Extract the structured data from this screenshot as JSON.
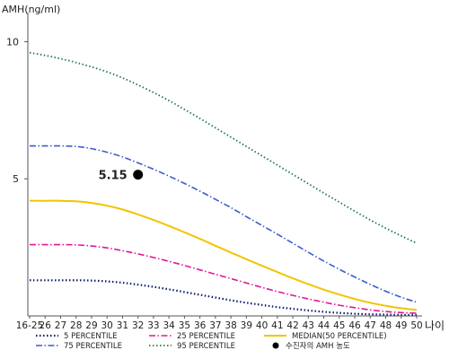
{
  "chart_data": {
    "type": "line",
    "ylabel": "AMH(ng/ml)",
    "xlabel": "나이",
    "yticks": [
      5,
      10
    ],
    "ylim": [
      0,
      10.8
    ],
    "categories": [
      "16-25",
      "26",
      "27",
      "28",
      "29",
      "30",
      "31",
      "32",
      "33",
      "34",
      "35",
      "36",
      "37",
      "38",
      "39",
      "40",
      "41",
      "42",
      "43",
      "44",
      "45",
      "46",
      "47",
      "48",
      "49",
      "50"
    ],
    "series": [
      {
        "name": "5 PERCENTILE",
        "color": "#0a1a6e",
        "dash": "1.5,2.5",
        "width": 2.2,
        "values": [
          1.3,
          1.3,
          1.3,
          1.3,
          1.29,
          1.26,
          1.21,
          1.14,
          1.06,
          0.97,
          0.87,
          0.77,
          0.67,
          0.57,
          0.48,
          0.4,
          0.32,
          0.26,
          0.2,
          0.15,
          0.11,
          0.08,
          0.06,
          0.05,
          0.04,
          0.04
        ]
      },
      {
        "name": "75 PERCENTILE",
        "color": "#3a5ec8",
        "dash": "7,2.5,1.5,2.5",
        "width": 1.6,
        "values": [
          6.2,
          6.2,
          6.2,
          6.18,
          6.1,
          5.97,
          5.8,
          5.58,
          5.35,
          5.1,
          4.83,
          4.55,
          4.25,
          3.95,
          3.62,
          3.3,
          2.98,
          2.65,
          2.32,
          2.0,
          1.7,
          1.42,
          1.15,
          0.9,
          0.68,
          0.5
        ]
      },
      {
        "name": "25 PERCENTILE",
        "color": "#e0189a",
        "dash": "7,2.5,1.5,2.5",
        "width": 1.6,
        "values": [
          2.6,
          2.6,
          2.6,
          2.59,
          2.55,
          2.48,
          2.38,
          2.26,
          2.13,
          1.99,
          1.84,
          1.68,
          1.52,
          1.36,
          1.2,
          1.04,
          0.89,
          0.75,
          0.62,
          0.5,
          0.39,
          0.3,
          0.22,
          0.16,
          0.12,
          0.1
        ]
      },
      {
        "name": "95 PERCENTILE",
        "color": "#1f7a43",
        "dash": "1.5,2.5",
        "width": 1.8,
        "values": [
          9.6,
          9.5,
          9.38,
          9.24,
          9.08,
          8.9,
          8.68,
          8.42,
          8.15,
          7.85,
          7.53,
          7.2,
          6.86,
          6.52,
          6.18,
          5.84,
          5.5,
          5.16,
          4.82,
          4.48,
          4.15,
          3.82,
          3.5,
          3.2,
          2.92,
          2.65
        ]
      },
      {
        "name": "MEDIAN(50 PERCENTILE)",
        "color": "#f2c400",
        "dash": "",
        "width": 2,
        "values": [
          4.2,
          4.2,
          4.2,
          4.18,
          4.12,
          4.02,
          3.88,
          3.7,
          3.5,
          3.28,
          3.05,
          2.81,
          2.56,
          2.31,
          2.07,
          1.83,
          1.6,
          1.37,
          1.16,
          0.96,
          0.78,
          0.62,
          0.48,
          0.37,
          0.28,
          0.22
        ]
      }
    ],
    "marker": {
      "label": "수진자의 AMH 농도",
      "x": "32",
      "value": 5.15,
      "value_label": "5.15",
      "color": "#000000"
    },
    "legend": [
      {
        "label": "5 PERCENTILE",
        "series": 0
      },
      {
        "label": "25 PERCENTILE",
        "series": 2
      },
      {
        "label": "MEDIAN(50 PERCENTILE)",
        "series": 4
      },
      {
        "label": "75 PERCENTILE",
        "series": 1
      },
      {
        "label": "95 PERCENTILE",
        "series": 3
      },
      {
        "label": "수진자의 AMH 농도",
        "marker": true
      }
    ]
  }
}
